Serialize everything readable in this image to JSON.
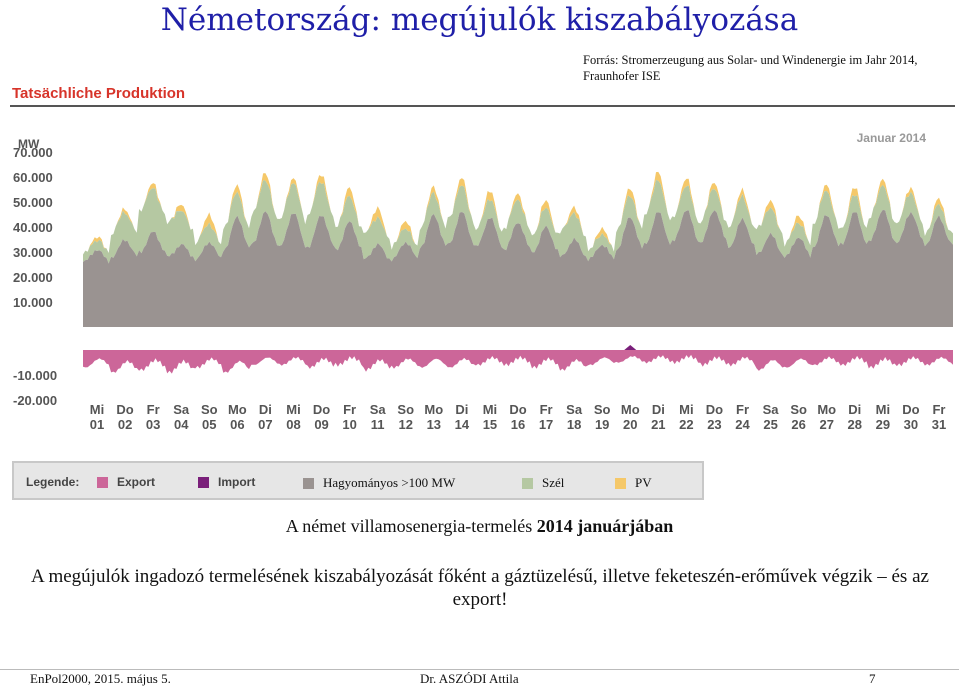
{
  "slide": {
    "title": "Németország: megújulók kiszabályozása",
    "source": "Forrás:  Stromerzeugung aus Solar- und Windenergie im Jahr 2014, Fraunhofer ISE",
    "chart_heading": "Tatsächliche Produktion",
    "caption_normal": "A német villamosenergia-termelés ",
    "caption_bold": "2014 januárjában",
    "body": "A megújulók ingadozó termelésének kiszabályozását főként a gáztüzelésű, illetve feketeszén-erőművek végzik – és az export!",
    "footer_left": "EnPol2000, 2015. május 5.",
    "footer_center": "Dr. ASZÓDI Attila",
    "footer_right": "7"
  },
  "legend": {
    "heading": "Legende:",
    "items": [
      {
        "label": "Export",
        "color": "#cc6699"
      },
      {
        "label": "Import",
        "color": "#7a1f7a"
      },
      {
        "label": "Hagyományos >100 MW",
        "color": "#9a9391"
      },
      {
        "label": "Szél",
        "color": "#b5c8a2"
      },
      {
        "label": "PV",
        "color": "#f5c869"
      }
    ]
  },
  "chart_data": {
    "type": "area",
    "unit": "MW",
    "period_label": "Januar 2014",
    "y_ticks": [
      "70.000",
      "60.000",
      "50.000",
      "40.000",
      "30.000",
      "20.000",
      "10.000",
      "-10.000",
      "-20.000"
    ],
    "y_tick_values": [
      70000,
      60000,
      50000,
      40000,
      30000,
      20000,
      10000,
      -10000,
      -20000
    ],
    "ylim": [
      -20000,
      70000
    ],
    "x_weekdays": [
      "Mi",
      "Do",
      "Fr",
      "Sa",
      "So",
      "Mo",
      "Di",
      "Mi",
      "Do",
      "Fr",
      "Sa",
      "So",
      "Mo",
      "Di",
      "Mi",
      "Do",
      "Fr",
      "Sa",
      "So",
      "Mo",
      "Di",
      "Mi",
      "Do",
      "Fr",
      "Sa",
      "So",
      "Mo",
      "Di",
      "Mi",
      "Do",
      "Fr"
    ],
    "x_days": [
      "01",
      "02",
      "03",
      "04",
      "05",
      "06",
      "07",
      "08",
      "09",
      "10",
      "11",
      "12",
      "13",
      "14",
      "15",
      "16",
      "17",
      "18",
      "19",
      "20",
      "21",
      "22",
      "23",
      "24",
      "25",
      "26",
      "27",
      "28",
      "29",
      "30",
      "31"
    ],
    "series": [
      {
        "name": "Hagyományos >100 MW",
        "color": "#9a9391",
        "peak": [
          31000,
          35000,
          38000,
          33000,
          34000,
          44000,
          46000,
          46000,
          45000,
          42000,
          33000,
          34000,
          45000,
          46000,
          44000,
          42000,
          40000,
          35000,
          33000,
          44000,
          46000,
          47000,
          47000,
          43000,
          37000,
          36000,
          45000,
          46000,
          47000,
          46000,
          44000
        ],
        "trough": [
          26000,
          28000,
          30000,
          28000,
          27000,
          31000,
          33000,
          32000,
          32000,
          31000,
          27000,
          27000,
          32000,
          33000,
          32000,
          31000,
          30000,
          28000,
          27000,
          31000,
          33000,
          34000,
          34000,
          32000,
          29000,
          28000,
          32000,
          33000,
          34000,
          34000,
          33000
        ]
      },
      {
        "name": "Szél",
        "color": "#b5c8a2",
        "peak": [
          4000,
          12000,
          20000,
          17000,
          9000,
          12000,
          15000,
          14000,
          16000,
          12000,
          13000,
          7000,
          10000,
          13000,
          9000,
          11000,
          9000,
          13000,
          5000,
          10000,
          15000,
          12000,
          11000,
          11000,
          13000,
          7000,
          12000,
          8000,
          12000,
          10000,
          6000
        ],
        "trough": [
          2000,
          6000,
          12000,
          9000,
          4000,
          5000,
          8000,
          7000,
          9000,
          6000,
          7000,
          3000,
          5000,
          7000,
          4000,
          6000,
          4000,
          7000,
          2000,
          5000,
          8000,
          6000,
          5000,
          5000,
          7000,
          3000,
          6000,
          4000,
          6000,
          5000,
          3000
        ]
      },
      {
        "name": "PV",
        "color": "#f5c869",
        "peak": [
          1500,
          1500,
          2000,
          2500,
          4000,
          3000,
          3000,
          2000,
          3000,
          3500,
          4000,
          3000,
          2500,
          3000,
          3500,
          2500,
          3000,
          2500,
          2500,
          3000,
          3500,
          3000,
          2500,
          2500,
          3000,
          3000,
          2500,
          3000,
          2500,
          2000,
          2500
        ]
      },
      {
        "name": "Export",
        "color": "#cc6699",
        "values": [
          -7000,
          -9000,
          -8000,
          -9000,
          -7000,
          -9000,
          -6000,
          -6000,
          -7000,
          -6000,
          -8000,
          -7000,
          -7000,
          -7000,
          -6000,
          -6000,
          -7000,
          -8000,
          -6000,
          -5000,
          -5000,
          -5000,
          -6000,
          -6000,
          -8000,
          -7000,
          -6000,
          -6000,
          -7000,
          -6000,
          -6000
        ]
      },
      {
        "name": "Import",
        "color": "#7a1f7a",
        "values": [
          0,
          0,
          0,
          0,
          0,
          0,
          0,
          0,
          0,
          0,
          0,
          0,
          0,
          0,
          0,
          0,
          0,
          0,
          0,
          2000,
          0,
          0,
          0,
          0,
          0,
          0,
          0,
          0,
          0,
          0,
          0
        ]
      }
    ]
  }
}
